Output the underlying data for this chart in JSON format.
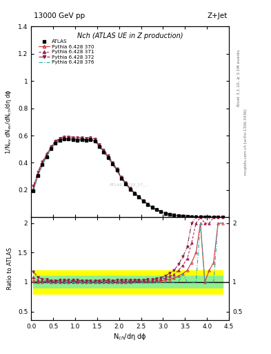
{
  "title_top": "13000 GeV pp",
  "title_right": "Z+Jet",
  "plot_title": "Nch (ATLAS UE in Z production)",
  "ylabel_main": "1/N$_{ev}$ dN$_{ev}$/dN$_{ch}$/dη dϕ",
  "ylabel_ratio": "Ratio to ATLAS",
  "xlabel": "N$_{ch}$/dη dϕ",
  "right_label_top": "Rivet 3.1.10, ≥ 3.1M events",
  "right_label_bottom": "mcplots.cern.ch [arXiv:1306.3436]",
  "watermark": "ATLAS_2019_17_...",
  "xlim": [
    0,
    4.5
  ],
  "ylim_main": [
    0,
    1.4
  ],
  "ylim_ratio": [
    0.35,
    2.1
  ],
  "atlas_x": [
    0.05,
    0.15,
    0.25,
    0.35,
    0.45,
    0.55,
    0.65,
    0.75,
    0.85,
    0.95,
    1.05,
    1.15,
    1.25,
    1.35,
    1.45,
    1.55,
    1.65,
    1.75,
    1.85,
    1.95,
    2.05,
    2.15,
    2.25,
    2.35,
    2.45,
    2.55,
    2.65,
    2.75,
    2.85,
    2.95,
    3.05,
    3.15,
    3.25,
    3.35,
    3.45,
    3.55,
    3.65,
    3.75,
    3.85,
    3.95,
    4.05,
    4.15,
    4.25,
    4.35
  ],
  "atlas_y": [
    0.195,
    0.305,
    0.385,
    0.445,
    0.505,
    0.545,
    0.565,
    0.575,
    0.575,
    0.57,
    0.565,
    0.57,
    0.565,
    0.57,
    0.56,
    0.52,
    0.48,
    0.44,
    0.39,
    0.345,
    0.285,
    0.245,
    0.205,
    0.175,
    0.148,
    0.118,
    0.095,
    0.072,
    0.055,
    0.04,
    0.028,
    0.02,
    0.015,
    0.01,
    0.007,
    0.005,
    0.003,
    0.002,
    0.001,
    0.001,
    0.0005,
    0.0003,
    0.0001,
    5e-05
  ],
  "atlas_yerr": [
    0.01,
    0.01,
    0.01,
    0.01,
    0.01,
    0.01,
    0.01,
    0.01,
    0.01,
    0.01,
    0.01,
    0.01,
    0.01,
    0.01,
    0.01,
    0.01,
    0.01,
    0.01,
    0.01,
    0.01,
    0.008,
    0.008,
    0.008,
    0.008,
    0.007,
    0.006,
    0.005,
    0.004,
    0.003,
    0.002,
    0.002,
    0.001,
    0.001,
    0.001,
    0.001,
    0.001,
    0.001,
    0.001,
    0.001,
    0.001,
    0.0005,
    0.0003,
    0.0001,
    5e-05
  ],
  "py370_y": [
    0.2,
    0.305,
    0.385,
    0.45,
    0.505,
    0.548,
    0.568,
    0.577,
    0.577,
    0.573,
    0.568,
    0.571,
    0.566,
    0.571,
    0.561,
    0.522,
    0.481,
    0.441,
    0.391,
    0.346,
    0.286,
    0.246,
    0.206,
    0.176,
    0.149,
    0.119,
    0.096,
    0.073,
    0.056,
    0.041,
    0.029,
    0.021,
    0.016,
    0.011,
    0.008,
    0.006,
    0.004,
    0.003,
    0.002,
    0.001,
    0.0006,
    0.0004,
    0.0002,
    0.0001
  ],
  "py371_y": [
    0.21,
    0.315,
    0.392,
    0.455,
    0.51,
    0.553,
    0.573,
    0.582,
    0.582,
    0.577,
    0.573,
    0.575,
    0.571,
    0.576,
    0.565,
    0.526,
    0.485,
    0.445,
    0.394,
    0.349,
    0.289,
    0.249,
    0.208,
    0.178,
    0.151,
    0.12,
    0.097,
    0.074,
    0.057,
    0.042,
    0.03,
    0.022,
    0.017,
    0.012,
    0.009,
    0.007,
    0.005,
    0.004,
    0.003,
    0.002,
    0.001,
    0.0007,
    0.0003,
    0.0002
  ],
  "py372_y": [
    0.23,
    0.33,
    0.405,
    0.465,
    0.518,
    0.56,
    0.582,
    0.592,
    0.592,
    0.587,
    0.583,
    0.586,
    0.581,
    0.586,
    0.575,
    0.535,
    0.494,
    0.453,
    0.401,
    0.356,
    0.294,
    0.253,
    0.212,
    0.181,
    0.154,
    0.122,
    0.099,
    0.075,
    0.058,
    0.043,
    0.031,
    0.023,
    0.018,
    0.013,
    0.01,
    0.008,
    0.006,
    0.005,
    0.004,
    0.003,
    0.002,
    0.001,
    0.0005,
    0.0003
  ],
  "py376_y": [
    0.19,
    0.298,
    0.378,
    0.442,
    0.498,
    0.54,
    0.56,
    0.57,
    0.57,
    0.566,
    0.561,
    0.564,
    0.56,
    0.564,
    0.554,
    0.515,
    0.475,
    0.435,
    0.386,
    0.341,
    0.282,
    0.242,
    0.203,
    0.173,
    0.146,
    0.117,
    0.094,
    0.071,
    0.055,
    0.04,
    0.028,
    0.02,
    0.015,
    0.01,
    0.008,
    0.005,
    0.003,
    0.002,
    0.002,
    0.001,
    0.0005,
    0.0003,
    0.0002,
    0.0001
  ],
  "color_370": "#cc3333",
  "color_371": "#aa2255",
  "color_372": "#882244",
  "color_376": "#22aaaa",
  "color_atlas": "#000000"
}
